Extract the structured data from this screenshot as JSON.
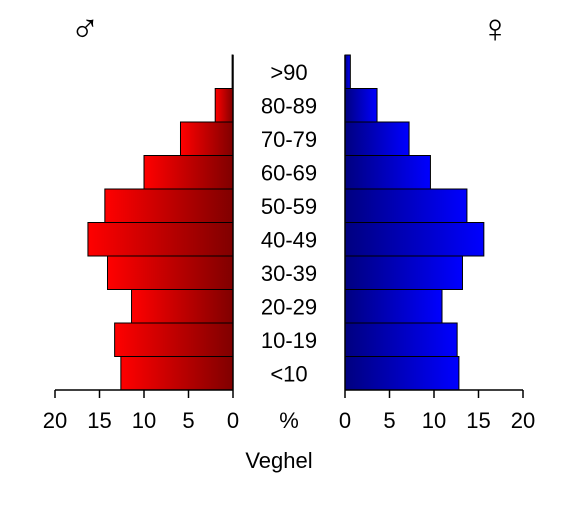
{
  "chart_data": {
    "type": "bar",
    "title": "Veghel",
    "unit_label": "%",
    "male_symbol": "♂",
    "female_symbol": "♀",
    "categories": [
      ">90",
      "80-89",
      "70-79",
      "60-69",
      "50-59",
      "40-49",
      "30-39",
      "20-29",
      "10-19",
      "<10"
    ],
    "series": [
      {
        "name": "",
        "side": "left",
        "colors": [
          "#ff0000",
          "#800000"
        ],
        "values": [
          0.1,
          2.0,
          5.9,
          10.0,
          14.4,
          16.3,
          14.1,
          11.4,
          13.3,
          12.6
        ]
      },
      {
        "name": "",
        "side": "right",
        "colors": [
          "#000080",
          "#0000ff"
        ],
        "values": [
          0.6,
          3.6,
          7.2,
          9.6,
          13.7,
          15.6,
          13.2,
          10.9,
          12.6,
          12.8
        ]
      }
    ],
    "xlim": [
      0,
      20
    ],
    "xticks": [
      20,
      15,
      10,
      5,
      0
    ],
    "xticks_right": [
      0,
      5,
      10,
      15,
      20
    ],
    "grid": false
  }
}
